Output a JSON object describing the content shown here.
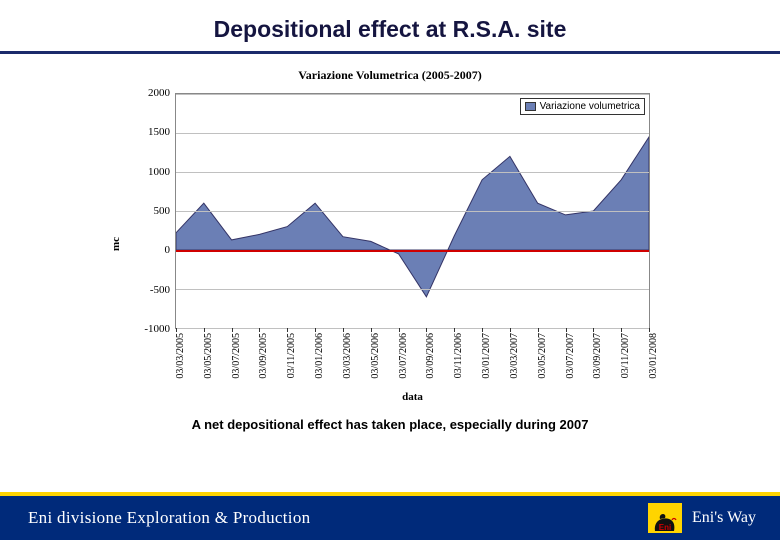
{
  "slide": {
    "title": "Depositional effect at R.S.A. site",
    "underline_color": "#1b2a6b",
    "caption": "A net depositional effect has taken place, especially during 2007"
  },
  "chart": {
    "type": "area",
    "title": "Variazione Volumetrica (2005-2007)",
    "background_color": "#ffffff",
    "grid_color": "#c0c0c0",
    "fill_color": "#6b7fb5",
    "fill_border_color": "#343466",
    "zero_line_color": "#d00000",
    "y_axis": {
      "label": "mc",
      "min": -1000,
      "max": 2000,
      "tick_step": 500,
      "ticks": [
        -1000,
        -500,
        0,
        500,
        1000,
        1500,
        2000
      ],
      "label_fontsize": 11
    },
    "x_axis": {
      "label": "data",
      "ticks": [
        "03/03/2005",
        "03/05/2005",
        "03/07/2005",
        "03/09/2005",
        "03/11/2005",
        "03/01/2006",
        "03/03/2006",
        "03/05/2006",
        "03/07/2006",
        "03/09/2006",
        "03/11/2006",
        "03/01/2007",
        "03/03/2007",
        "03/05/2007",
        "03/07/2007",
        "03/09/2007",
        "03/11/2007",
        "03/01/2008"
      ],
      "label_fontsize": 11
    },
    "legend": {
      "label": "Variazione volumetrica",
      "swatch_color": "#6b7fb5"
    },
    "data": {
      "x": [
        0,
        1,
        2,
        3,
        4,
        5,
        6,
        7,
        8,
        9,
        10,
        11,
        12,
        13,
        14,
        15,
        16,
        17
      ],
      "values": [
        220,
        600,
        130,
        200,
        300,
        600,
        170,
        110,
        -50,
        -600,
        180,
        900,
        1200,
        600,
        450,
        500,
        900,
        1450
      ]
    }
  },
  "footer": {
    "bg_color": "#002a7a",
    "accent_color": "#ffd400",
    "left_text": "Eni divisione Exploration & Production",
    "logo_text": "Eni",
    "right_text": "Eni's Way"
  }
}
